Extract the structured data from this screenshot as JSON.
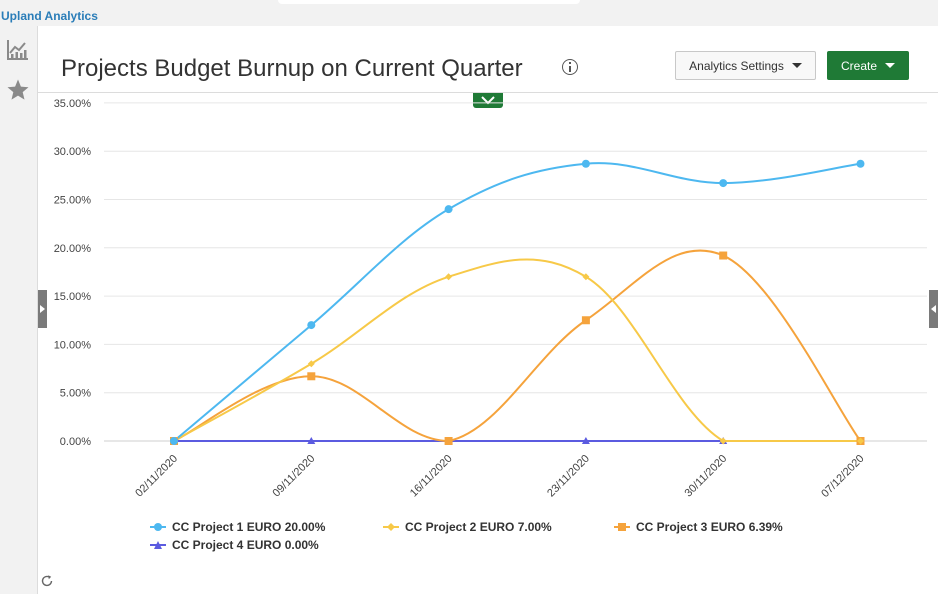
{
  "app": {
    "brand": "Upland Analytics"
  },
  "page": {
    "title": "Projects Budget Burnup on Current Quarter"
  },
  "toolbar": {
    "settings_label": "Analytics Settings",
    "create_label": "Create"
  },
  "left_rail": {
    "icons": [
      "chart-icon",
      "star-icon"
    ]
  },
  "colors": {
    "accent_green": "#1f7a36",
    "brand_blue": "#2a7db8",
    "p1": "#4db8f0",
    "p2": "#f7c948",
    "p3": "#f5a33c",
    "p4": "#5b5be0"
  },
  "chart_data": {
    "type": "line",
    "categories": [
      "02/11/2020",
      "09/11/2020",
      "16/11/2020",
      "23/11/2020",
      "30/11/2020",
      "07/12/2020"
    ],
    "yticks": [
      "0.00%",
      "5.00%",
      "10.00%",
      "15.00%",
      "20.00%",
      "25.00%",
      "30.00%",
      "35.00%"
    ],
    "ylim": [
      0,
      35
    ],
    "grid": true,
    "legend_position": "bottom",
    "series": [
      {
        "name": "CC Project 1 EURO 20.00%",
        "marker": "circle",
        "color": "#4db8f0",
        "values": [
          0,
          12.0,
          24.0,
          28.7,
          26.7,
          28.7
        ]
      },
      {
        "name": "CC Project 2 EURO 7.00%",
        "marker": "diamond",
        "color": "#f7c948",
        "values": [
          0,
          8.0,
          17.0,
          17.0,
          0,
          0
        ]
      },
      {
        "name": "CC Project 3 EURO 6.39%",
        "marker": "square",
        "color": "#f5a33c",
        "values": [
          0,
          6.7,
          0,
          12.5,
          19.2,
          0
        ]
      },
      {
        "name": "CC Project 4 EURO 0.00%",
        "marker": "triangle",
        "color": "#5b5be0",
        "values": [
          0,
          0,
          0,
          0,
          0,
          0
        ]
      }
    ]
  }
}
